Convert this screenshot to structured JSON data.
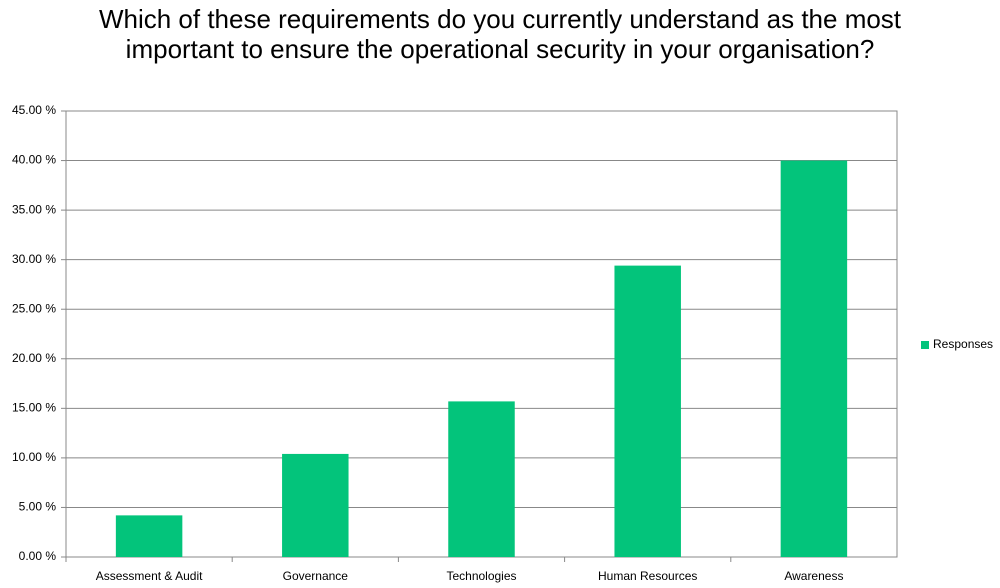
{
  "chart_data": {
    "type": "bar",
    "title": "Which of these requirements do you currently understand as the most important to ensure the operational security in your organisation?",
    "categories": [
      "Assessment & Audit",
      "Governance",
      "Technologies",
      "Human Resources",
      "Awareness"
    ],
    "series": [
      {
        "name": "Responses",
        "color": "#03c47b",
        "values": [
          4.2,
          10.4,
          15.7,
          29.4,
          40.0
        ]
      }
    ],
    "ylim": [
      0,
      45
    ],
    "yticks": [
      {
        "value": 0,
        "label": "0.00 %"
      },
      {
        "value": 5,
        "label": "5.00 %"
      },
      {
        "value": 10,
        "label": "10.00 %"
      },
      {
        "value": 15,
        "label": "15.00 %"
      },
      {
        "value": 20,
        "label": "20.00 %"
      },
      {
        "value": 25,
        "label": "25.00 %"
      },
      {
        "value": 30,
        "label": "30.00 %"
      },
      {
        "value": 35,
        "label": "35.00 %"
      },
      {
        "value": 40,
        "label": "40.00 %"
      },
      {
        "value": 45,
        "label": "45.00 %"
      }
    ],
    "grid": true,
    "legend": "right"
  }
}
